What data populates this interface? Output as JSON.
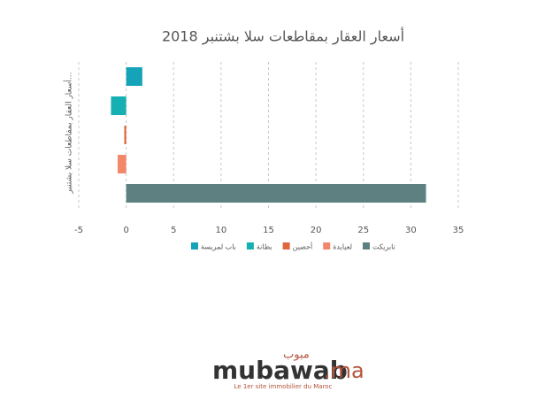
{
  "chart_data": {
    "type": "bar",
    "orientation": "horizontal",
    "title": "أسعار العقار بمقاطعات سلا بشتنبر 2018",
    "y_label": "أسعار العقار بمقاطعات سلا بشتنبر...",
    "categories": [
      null
    ],
    "series": [
      {
        "name": "باب لمريسة",
        "color": "#14a3b8",
        "values": [
          1.7
        ]
      },
      {
        "name": "بطانة",
        "color": "#16b0b2",
        "values": [
          -1.6
        ]
      },
      {
        "name": "أحصين",
        "color": "#e0643c",
        "values": [
          -0.2
        ]
      },
      {
        "name": "لعيايدة",
        "color": "#f2876a",
        "values": [
          -0.9
        ]
      },
      {
        "name": "تابريكت",
        "color": "#5f8081",
        "values": [
          31.6
        ]
      }
    ],
    "xlim": [
      -5,
      35
    ],
    "xticks": [
      -5,
      0,
      5,
      10,
      15,
      20,
      25,
      30,
      35
    ],
    "grid": true
  },
  "logo": {
    "arabic": "مبوب",
    "name": "mubawab",
    "suffix": ".ma",
    "tagline": "Le 1er site immobilier du Maroc"
  }
}
